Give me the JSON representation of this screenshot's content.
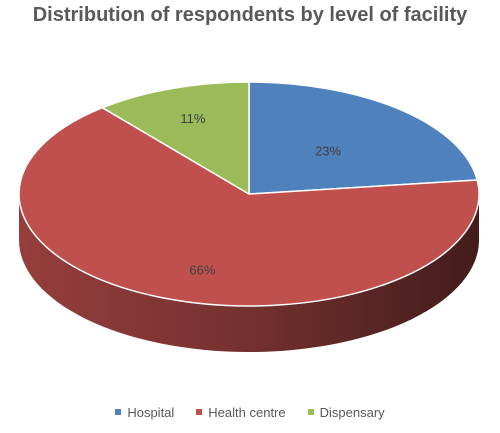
{
  "chart_data": {
    "type": "pie",
    "title": "Distribution of respondents by level of facility",
    "categories": [
      "Hospital",
      "Health centre",
      "Dispensary"
    ],
    "values": [
      23,
      66,
      11
    ],
    "data_labels": [
      "23%",
      "66%",
      "11%"
    ],
    "colors": [
      "#4f81bd",
      "#c0504d",
      "#9bbb59"
    ],
    "legend": "bottom",
    "style": "3d"
  }
}
